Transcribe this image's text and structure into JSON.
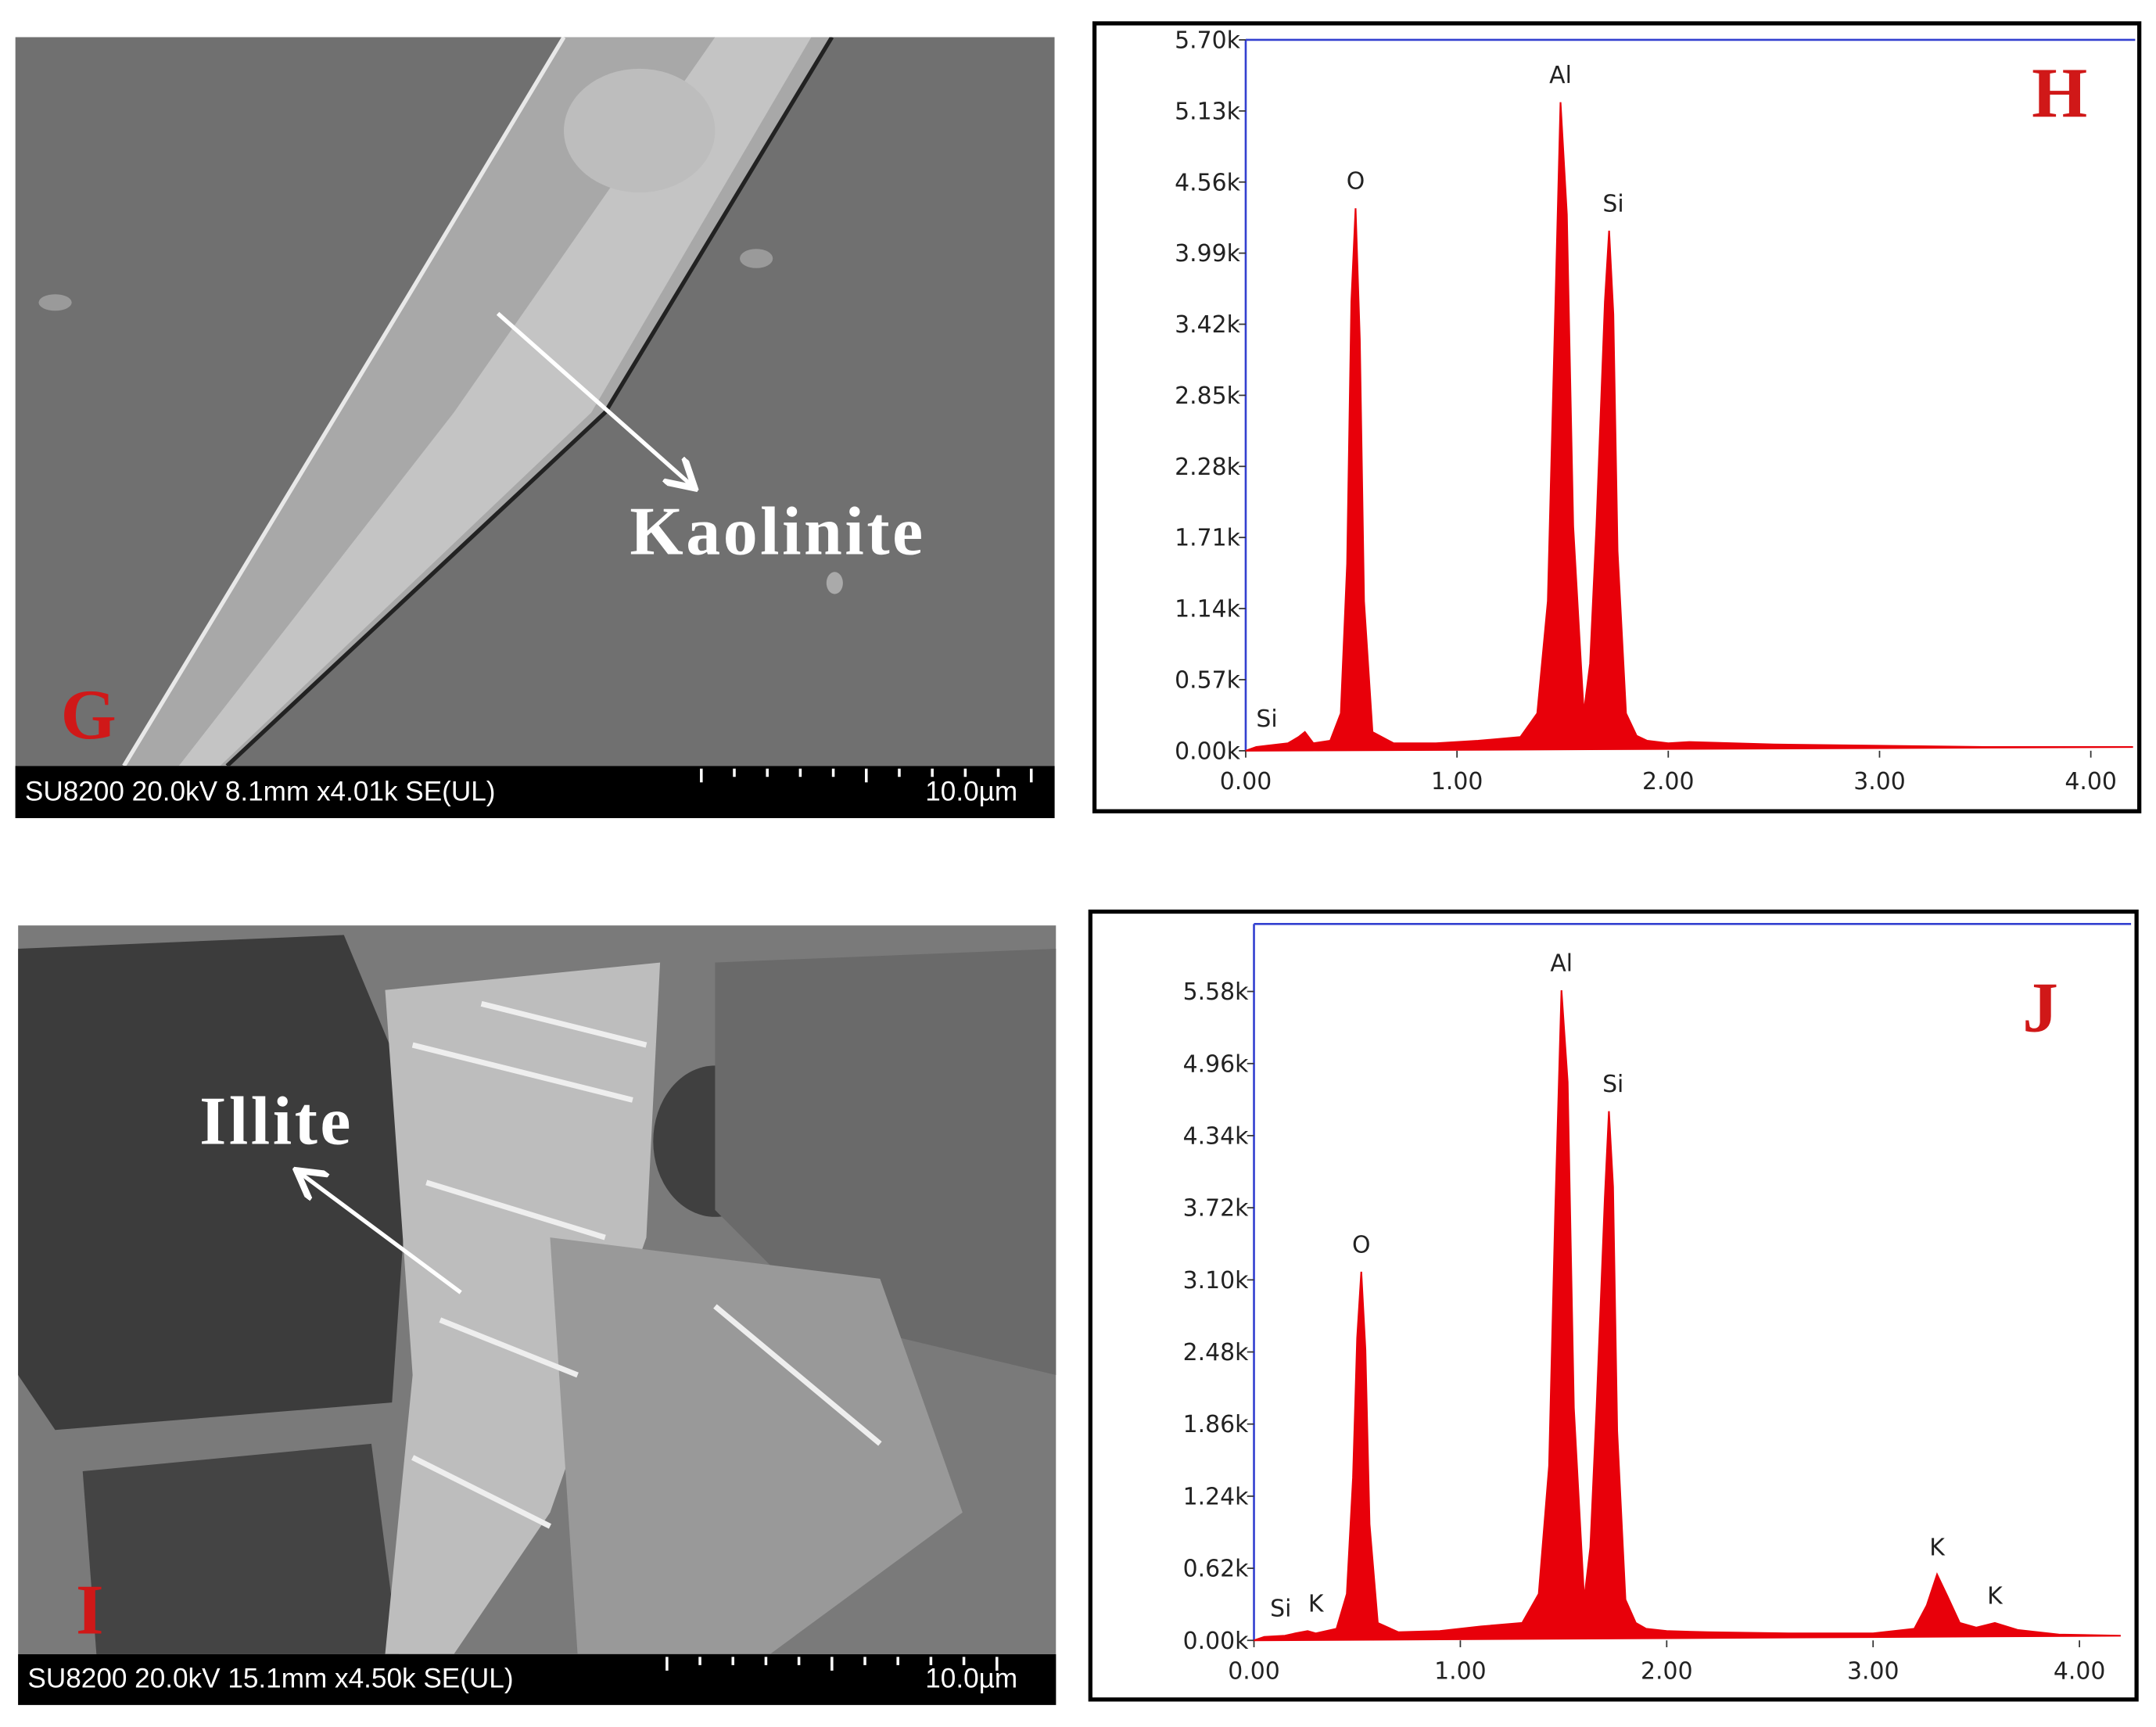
{
  "panels": [
    {
      "letter": "G",
      "label": "Kaolinite",
      "info": "SU8200 20.0kV 8.1mm x4.01k SE(UL)",
      "scale": "10.0µm"
    },
    {
      "letter": "I",
      "label": "Illite",
      "info": "SU8200 20.0kV 15.1mm x4.50k SE(UL)",
      "scale": "10.0µm"
    }
  ],
  "chart_data": [
    {
      "type": "area",
      "title": "H",
      "color": "#e8000a",
      "x": [
        0,
        0.05,
        0.1,
        0.2,
        0.25,
        0.28,
        0.32,
        0.4,
        0.45,
        0.48,
        0.5,
        0.52,
        0.54,
        0.56,
        0.6,
        0.7,
        0.9,
        1.1,
        1.3,
        1.38,
        1.43,
        1.46,
        1.49,
        1.52,
        1.55,
        1.6,
        1.63,
        1.66,
        1.7,
        1.72,
        1.74,
        1.76,
        1.8,
        1.85,
        1.9,
        2.0,
        2.1,
        2.5,
        3.0,
        3.5,
        4.0,
        4.2
      ],
      "values": [
        0,
        30,
        40,
        60,
        110,
        150,
        60,
        80,
        300,
        1500,
        3600,
        4350,
        3300,
        1200,
        150,
        60,
        60,
        80,
        110,
        300,
        1200,
        3200,
        5200,
        4300,
        1800,
        300,
        700,
        1800,
        3600,
        4170,
        3500,
        1600,
        300,
        120,
        80,
        60,
        70,
        50,
        40,
        30,
        30,
        30
      ],
      "xlim": [
        0,
        4.21
      ],
      "ylim": [
        0,
        5700
      ],
      "xticks": [
        {
          "value": 0,
          "label": "0.00"
        },
        {
          "value": 1,
          "label": "1.00"
        },
        {
          "value": 2,
          "label": "2.00"
        },
        {
          "value": 3,
          "label": "3.00"
        },
        {
          "value": 4,
          "label": "4.00"
        }
      ],
      "yticks": [
        {
          "value": 0,
          "label": "0.00k"
        },
        {
          "value": 570,
          "label": "0.57k"
        },
        {
          "value": 1140,
          "label": "1.14k"
        },
        {
          "value": 1710,
          "label": "1.71k"
        },
        {
          "value": 2280,
          "label": "2.28k"
        },
        {
          "value": 2850,
          "label": "2.85k"
        },
        {
          "value": 3420,
          "label": "3.42k"
        },
        {
          "value": 3990,
          "label": "3.99k"
        },
        {
          "value": 4560,
          "label": "4.56k"
        },
        {
          "value": 5130,
          "label": "5.13k"
        },
        {
          "value": 5700,
          "label": "5.70k"
        }
      ],
      "annotations": [
        {
          "text": "Si",
          "x": 0.1
        },
        {
          "text": "O",
          "x": 0.52
        },
        {
          "text": "Al",
          "x": 1.49
        },
        {
          "text": "Si",
          "x": 1.74
        }
      ]
    },
    {
      "type": "area",
      "title": "J",
      "color": "#e8000a",
      "x": [
        0,
        0.05,
        0.15,
        0.2,
        0.26,
        0.3,
        0.4,
        0.45,
        0.48,
        0.5,
        0.52,
        0.54,
        0.56,
        0.6,
        0.7,
        0.9,
        1.1,
        1.3,
        1.38,
        1.43,
        1.46,
        1.49,
        1.52,
        1.55,
        1.6,
        1.63,
        1.66,
        1.7,
        1.72,
        1.74,
        1.76,
        1.8,
        1.85,
        1.9,
        2.0,
        2.2,
        2.6,
        3.0,
        3.2,
        3.26,
        3.31,
        3.36,
        3.42,
        3.5,
        3.59,
        3.7,
        3.9,
        4.2
      ],
      "values": [
        0,
        30,
        40,
        60,
        80,
        60,
        100,
        400,
        1400,
        2600,
        3170,
        2500,
        1000,
        150,
        70,
        80,
        120,
        150,
        400,
        1500,
        3700,
        5590,
        4800,
        2000,
        350,
        800,
        2000,
        3800,
        4550,
        3900,
        1800,
        350,
        150,
        100,
        80,
        70,
        60,
        60,
        100,
        300,
        567,
        380,
        150,
        110,
        150,
        90,
        50,
        40
      ],
      "xlim": [
        0,
        4.25
      ],
      "ylim": [
        0,
        6160
      ],
      "xticks": [
        {
          "value": 0,
          "label": "0.00"
        },
        {
          "value": 1,
          "label": "1.00"
        },
        {
          "value": 2,
          "label": "2.00"
        },
        {
          "value": 3,
          "label": "3.00"
        },
        {
          "value": 4,
          "label": "4.00"
        }
      ],
      "yticks": [
        {
          "value": 0,
          "label": "0.00k"
        },
        {
          "value": 620,
          "label": "0.62k"
        },
        {
          "value": 1240,
          "label": "1.24k"
        },
        {
          "value": 1860,
          "label": "1.86k"
        },
        {
          "value": 2480,
          "label": "2.48k"
        },
        {
          "value": 3100,
          "label": "3.10k"
        },
        {
          "value": 3720,
          "label": "3.72k"
        },
        {
          "value": 4340,
          "label": "4.34k"
        },
        {
          "value": 4960,
          "label": "4.96k"
        },
        {
          "value": 5580,
          "label": "5.58k"
        }
      ],
      "annotations": [
        {
          "text": "Si",
          "x": 0.13
        },
        {
          "text": "K",
          "x": 0.3
        },
        {
          "text": "O",
          "x": 0.52
        },
        {
          "text": "Al",
          "x": 1.49
        },
        {
          "text": "Si",
          "x": 1.74
        },
        {
          "text": "K",
          "x": 3.31
        },
        {
          "text": "K",
          "x": 3.59
        }
      ]
    }
  ]
}
